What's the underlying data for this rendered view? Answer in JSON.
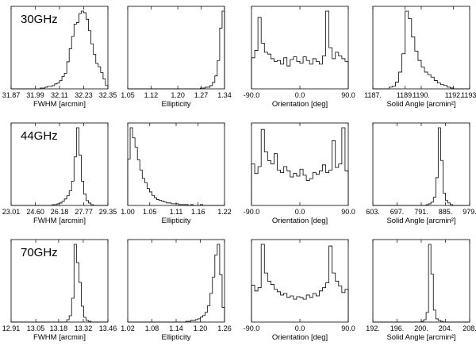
{
  "chart_data": [
    {
      "type": "histogram",
      "row": 0,
      "col": 0,
      "title": "30GHz",
      "xlabel": "FWHM [arcmin]",
      "xlim": [
        31.87,
        32.35
      ],
      "xticks": [
        31.87,
        31.99,
        32.11,
        32.23,
        32.35
      ],
      "xtick_labels": [
        "31.87",
        "31.99",
        "32.11",
        "32.23",
        "32.35"
      ],
      "values": [
        0,
        0,
        0,
        0,
        0,
        0,
        0,
        0,
        0,
        0,
        0,
        0,
        1,
        1,
        2,
        3,
        3,
        4,
        6,
        7,
        10,
        15,
        19,
        33,
        49,
        64,
        79,
        81,
        92,
        95,
        93,
        85,
        71,
        55,
        42,
        31,
        27,
        20,
        12,
        4
      ]
    },
    {
      "type": "histogram",
      "row": 0,
      "col": 1,
      "title": "",
      "xlabel": "Ellipticity",
      "xlim": [
        1.05,
        1.34
      ],
      "xticks": [
        1.05,
        1.12,
        1.2,
        1.27,
        1.34
      ],
      "xtick_labels": [
        "1.05",
        "1.12",
        "1.20",
        "1.27",
        "1.34"
      ],
      "values": [
        0,
        0,
        0,
        0,
        0,
        0,
        0,
        0,
        0,
        0,
        0,
        0,
        0,
        0,
        0,
        0,
        0,
        0,
        0,
        0,
        0,
        0,
        0,
        0,
        0,
        0,
        0,
        0,
        0,
        0,
        1,
        1,
        2,
        2,
        4,
        8,
        16,
        35,
        75,
        96
      ]
    },
    {
      "type": "histogram",
      "row": 0,
      "col": 2,
      "title": "",
      "xlabel": "Orientation [deg]",
      "xlim": [
        -90.0,
        90.0
      ],
      "xticks": [
        -90.0,
        0.0,
        90.0
      ],
      "xtick_labels": [
        "-90.0",
        "0.0",
        "90.0"
      ],
      "values": [
        34,
        42,
        78,
        50,
        40,
        38,
        33,
        30,
        31,
        27,
        34,
        25,
        32,
        35,
        30,
        28,
        35,
        31,
        27,
        33,
        30,
        27,
        36,
        85,
        45,
        33,
        40,
        36,
        33,
        30
      ]
    },
    {
      "type": "histogram",
      "row": 0,
      "col": 3,
      "title": "",
      "xlabel": "Solid Angle [arcmin²]",
      "xlim": [
        1187.0,
        1193.0
      ],
      "xticks": [
        1187.0,
        1189.0,
        1190.0,
        1192.0,
        1193.0
      ],
      "xtick_labels": [
        "1187.",
        "1189.",
        "1190.",
        "1192.",
        "1193."
      ],
      "values": [
        0,
        0,
        0,
        0,
        0,
        2,
        3,
        8,
        20,
        42,
        93,
        84,
        62,
        45,
        34,
        26,
        20,
        17,
        14,
        10,
        7,
        5,
        4,
        2,
        1,
        0,
        0,
        0,
        0,
        0
      ]
    },
    {
      "type": "histogram",
      "row": 1,
      "col": 0,
      "title": "44GHz",
      "xlabel": "FWHM [arcmin]",
      "xlim": [
        23.01,
        29.35
      ],
      "xticks": [
        23.01,
        24.6,
        26.18,
        27.77,
        29.35
      ],
      "xtick_labels": [
        "23.01",
        "24.60",
        "26.18",
        "27.77",
        "29.35"
      ],
      "values": [
        0,
        0,
        0,
        0,
        0,
        0,
        0,
        0,
        0,
        0,
        0,
        0,
        0,
        0,
        0,
        0,
        0,
        1,
        1,
        2,
        3,
        5,
        8,
        12,
        18,
        30,
        60,
        96,
        62,
        30,
        14,
        6,
        3,
        1,
        0,
        0,
        0,
        0,
        0,
        0
      ]
    },
    {
      "type": "histogram",
      "row": 1,
      "col": 1,
      "title": "",
      "xlabel": "Ellipticity",
      "xlim": [
        1.0,
        1.22
      ],
      "xticks": [
        1.0,
        1.05,
        1.11,
        1.16,
        1.22
      ],
      "xtick_labels": [
        "1.00",
        "1.05",
        "1.11",
        "1.16",
        "1.22"
      ],
      "values": [
        55,
        92,
        80,
        69,
        54,
        42,
        32,
        27,
        20,
        16,
        12,
        9,
        7,
        6,
        5,
        4,
        3,
        3,
        2,
        2,
        2,
        1,
        1,
        1,
        1,
        0,
        1,
        0,
        0,
        0,
        1,
        0,
        0,
        0,
        0,
        0,
        0,
        0,
        0,
        0
      ]
    },
    {
      "type": "histogram",
      "row": 1,
      "col": 2,
      "title": "",
      "xlabel": "Orientation [deg]",
      "xlim": [
        -90.0,
        90.0
      ],
      "xticks": [
        -90.0,
        0.0,
        90.0
      ],
      "xtick_labels": [
        "-90.0",
        "0.0",
        "90.0"
      ],
      "values": [
        48,
        37,
        45,
        88,
        62,
        52,
        48,
        60,
        41,
        38,
        45,
        40,
        33,
        37,
        34,
        42,
        35,
        29,
        31,
        38,
        36,
        40,
        47,
        38,
        41,
        75,
        44,
        48,
        90,
        40
      ]
    },
    {
      "type": "histogram",
      "row": 1,
      "col": 3,
      "title": "",
      "xlabel": "Solid Angle [arcmin²]",
      "xlim": [
        603.0,
        979.0
      ],
      "xticks": [
        603.0,
        697.0,
        791.0,
        885.0,
        979.0
      ],
      "xtick_labels": [
        "603.",
        "697.",
        "791.",
        "885.",
        "979."
      ],
      "values": [
        0,
        0,
        0,
        0,
        0,
        0,
        0,
        0,
        0,
        0,
        0,
        0,
        0,
        0,
        0,
        0,
        0,
        0,
        0,
        0,
        0,
        0,
        1,
        2,
        4,
        10,
        34,
        95,
        55,
        15,
        6,
        3,
        1,
        0,
        0,
        0,
        0,
        0,
        0,
        0
      ]
    },
    {
      "type": "histogram",
      "row": 2,
      "col": 0,
      "title": "70GHz",
      "xlabel": "FWHM [arcmin]",
      "xlim": [
        12.91,
        13.46
      ],
      "xticks": [
        12.91,
        13.05,
        13.18,
        13.32,
        13.46
      ],
      "xtick_labels": [
        "12.91",
        "13.05",
        "13.18",
        "13.32",
        "13.46"
      ],
      "values": [
        0,
        0,
        0,
        0,
        0,
        0,
        0,
        0,
        0,
        0,
        0,
        0,
        0,
        0,
        0,
        0,
        0,
        0,
        0,
        0,
        0,
        0,
        0,
        3,
        8,
        30,
        98,
        75,
        50,
        20,
        6,
        2,
        1,
        0,
        0,
        0,
        0,
        0,
        0,
        0
      ]
    },
    {
      "type": "histogram",
      "row": 2,
      "col": 1,
      "title": "",
      "xlabel": "Ellipticity",
      "xlim": [
        1.02,
        1.26
      ],
      "xticks": [
        1.02,
        1.08,
        1.14,
        1.2,
        1.26
      ],
      "xtick_labels": [
        "1.02",
        "1.08",
        "1.14",
        "1.20",
        "1.26"
      ],
      "values": [
        0,
        0,
        0,
        0,
        0,
        0,
        0,
        0,
        0,
        0,
        0,
        0,
        0,
        0,
        0,
        0,
        0,
        0,
        0,
        0,
        0,
        0,
        0,
        0,
        1,
        1,
        2,
        2,
        3,
        4,
        6,
        8,
        12,
        20,
        35,
        55,
        82,
        95,
        58,
        18
      ]
    },
    {
      "type": "histogram",
      "row": 2,
      "col": 2,
      "title": "",
      "xlabel": "Orientation [deg]",
      "xlim": [
        -90.0,
        90.0
      ],
      "xticks": [
        -90.0,
        0.0,
        90.0
      ],
      "xtick_labels": [
        "-90.0",
        "0.0",
        "90.0"
      ],
      "values": [
        45,
        38,
        42,
        95,
        60,
        50,
        46,
        40,
        37,
        33,
        35,
        30,
        32,
        28,
        31,
        30,
        28,
        33,
        30,
        35,
        32,
        38,
        42,
        48,
        93,
        60,
        50,
        44,
        36,
        40
      ]
    },
    {
      "type": "histogram",
      "row": 2,
      "col": 3,
      "title": "",
      "xlabel": "Solid Angle [arcmin²]",
      "xlim": [
        192.0,
        208.0
      ],
      "xticks": [
        192.0,
        196.0,
        200.0,
        204.0,
        208.0
      ],
      "xtick_labels": [
        "192.",
        "196.",
        "200.",
        "204.",
        "208."
      ],
      "values": [
        0,
        0,
        0,
        0,
        0,
        0,
        0,
        0,
        0,
        0,
        0,
        0,
        0,
        0,
        0,
        0,
        0,
        0,
        0,
        0,
        1,
        3,
        12,
        97,
        60,
        15,
        4,
        2,
        1,
        0,
        0,
        0,
        0,
        0,
        0,
        0,
        0,
        0,
        0,
        0
      ]
    }
  ]
}
